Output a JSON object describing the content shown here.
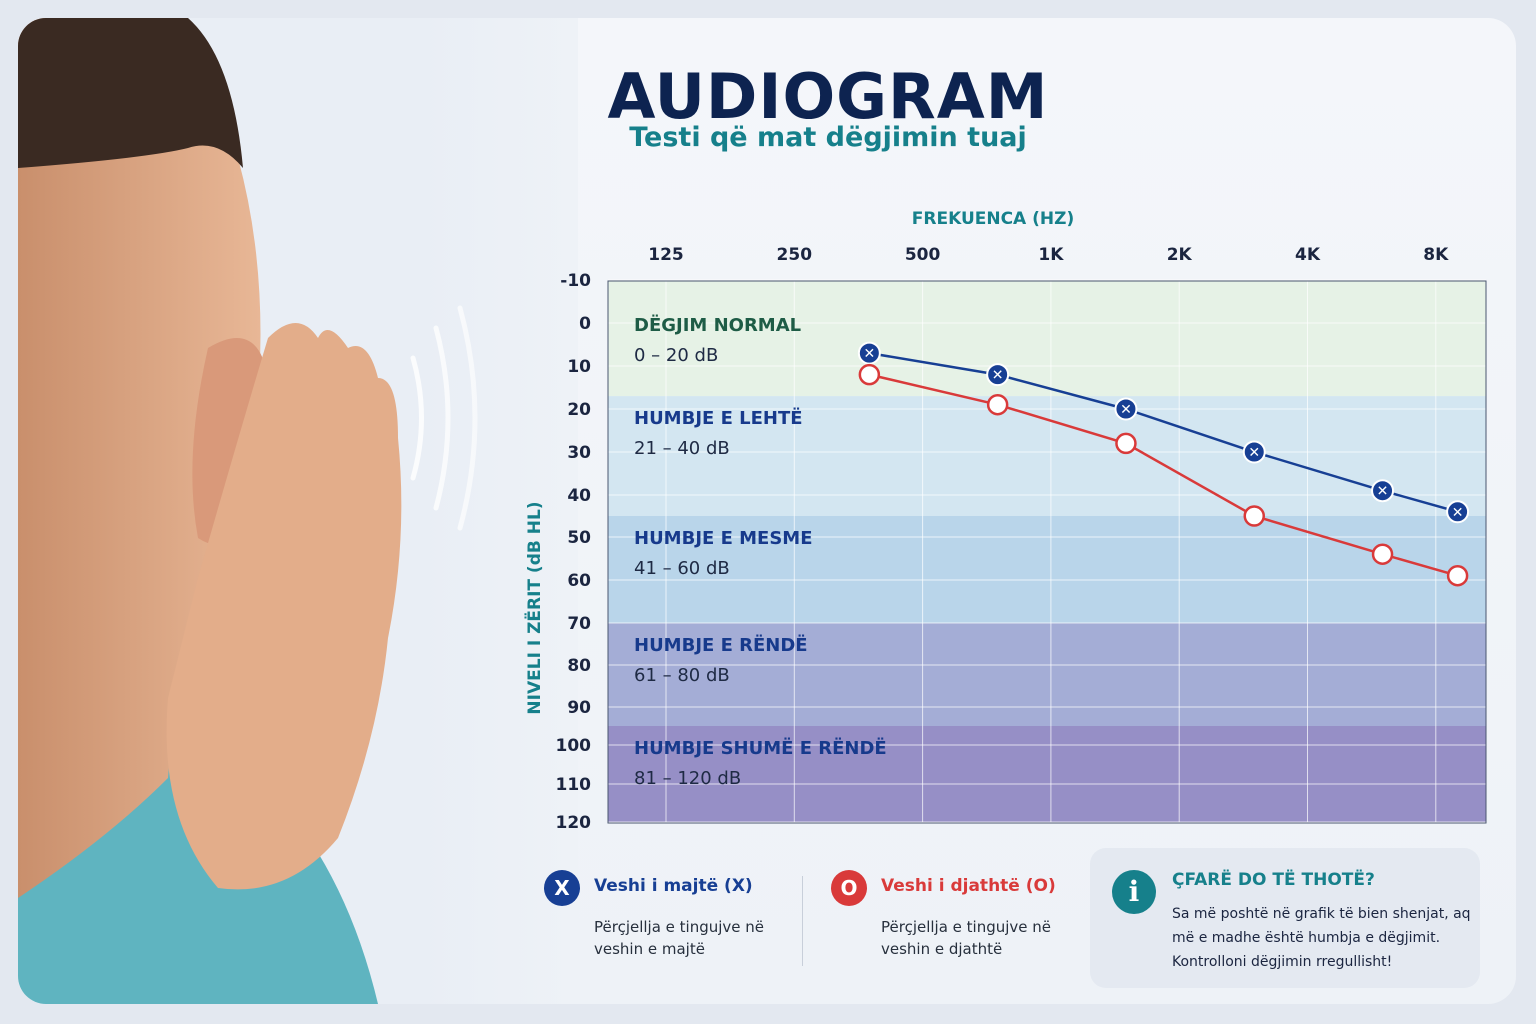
{
  "header": {
    "title": "AUDIOGRAM",
    "subtitle": "Testi që mat dëgjimin tuaj"
  },
  "chart_data": {
    "type": "line",
    "x_axis_title": "FREKUENCA (HZ)",
    "y_axis_title": "NIVELI I ZËRIT (dB HL)",
    "x_ticks": [
      "125",
      "250",
      "500",
      "1K",
      "2K",
      "4K",
      "8K"
    ],
    "y_ticks": [
      "-10",
      "0",
      "10",
      "20",
      "30",
      "40",
      "50",
      "60",
      "70",
      "80",
      "90",
      "100",
      "110",
      "120"
    ],
    "y_scale": "banded",
    "y_inverted": true,
    "grid": true,
    "bands": [
      {
        "name": "DËGJIM NORMAL",
        "range": "0 – 20 dB",
        "from": -10,
        "to": 17,
        "color": "#e6f2e6",
        "text_color": "#1e5c46"
      },
      {
        "name": "HUMBJE E LEHTË",
        "range": "21 – 40 dB",
        "from": 17,
        "to": 45,
        "color": "#d3e6f1",
        "text_color": "#173a8c"
      },
      {
        "name": "HUMBJE E MESME",
        "range": "41 – 60 dB",
        "from": 45,
        "to": 70,
        "color": "#b9d5ea",
        "text_color": "#173a8c"
      },
      {
        "name": "HUMBJE E RËNDË",
        "range": "61 – 80 dB",
        "from": 70,
        "to": 95,
        "color": "#a4add6",
        "text_color": "#173a8c"
      },
      {
        "name": "HUMBJE SHUMË E RËNDË",
        "range": "81 – 120 dB",
        "from": 95,
        "to": 120,
        "color": "#968fc6",
        "text_color": "#173a8c"
      }
    ],
    "series": [
      {
        "name": "Veshi i majtë (X)",
        "marker": "X",
        "color": "#173f94",
        "x": [
          375,
          750,
          1500,
          3000,
          6000,
          9000
        ],
        "y": [
          7,
          12,
          20,
          30,
          39,
          44
        ]
      },
      {
        "name": "Veshi i djathtë (O)",
        "marker": "O",
        "color": "#d93a3a",
        "x": [
          375,
          750,
          1500,
          3000,
          6000,
          9000
        ],
        "y": [
          12,
          19,
          28,
          45,
          54,
          59
        ]
      }
    ]
  },
  "legend": {
    "left": {
      "badge": "X",
      "title": "Veshi i majtë (X)",
      "description": "Përçjellja e tingujve në veshin e majtë",
      "color": "#173f94"
    },
    "right": {
      "badge": "O",
      "title": "Veshi i djathtë (O)",
      "description": "Përçjellja e tingujve në veshin e djathtë",
      "color": "#d93a3a"
    }
  },
  "info": {
    "icon": "info-icon",
    "title": "ÇFARË DO TË THOTË?",
    "text": "Sa më poshtë në grafik të bien shenjat, aq më e madhe është humbja e dëgjimit. Kontrolloni dëgjimin rregullisht!"
  },
  "colors": {
    "title": "#0d2350",
    "accent_teal": "#16808b",
    "left_ear": "#173f94",
    "right_ear": "#d93a3a"
  }
}
